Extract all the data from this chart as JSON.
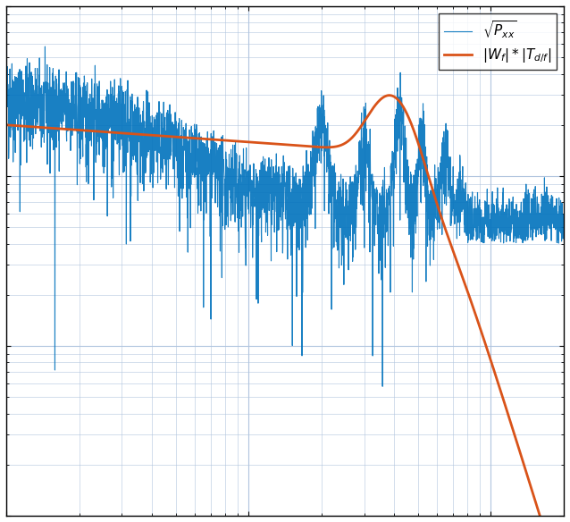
{
  "title": "",
  "xlabel": "",
  "ylabel": "",
  "xlim": [
    1,
    200
  ],
  "ylim": [
    1e-09,
    1e-06
  ],
  "blue_color": "#0072BD",
  "orange_color": "#D95319",
  "background_color": "#FFFFFF",
  "grid_color": "#B0C4DE",
  "legend_labels": [
    "$\\sqrt{P_{xx}}$",
    "$|W_f| * |T_{d/f}|$"
  ],
  "figsize": [
    6.38,
    5.84
  ],
  "dpi": 100
}
